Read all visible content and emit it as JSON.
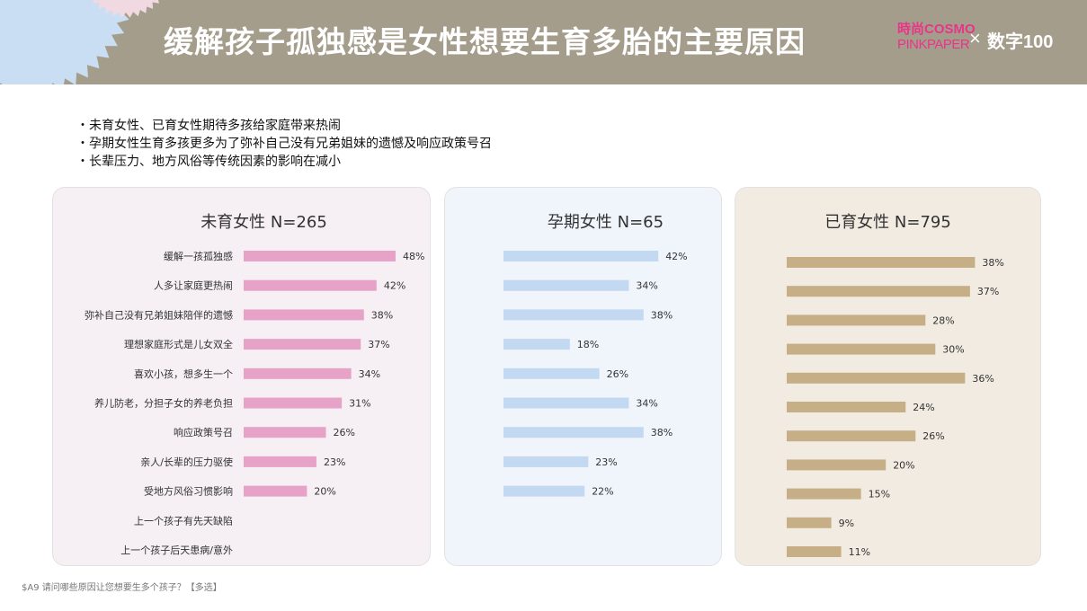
{
  "header": {
    "title": "缓解孩子孤独感是女性想要生育多胎的主要原因",
    "logo_line1": "時尚COSMO",
    "logo_line2": "PINKPAPER",
    "logo_sep": "×",
    "logo_partner": "数字100"
  },
  "bullets": [
    "・未育女性、已育女性期待多孩给家庭带来热闹",
    "・孕期女性生育多孩更多为了弥补自己没有兄弟姐妹的遗憾及响应政策号召",
    "・长辈压力、地方风俗等传统因素的影响在减小"
  ],
  "footnote": "$A9 请问哪些原因让您想要生多个孩子？【多选】",
  "colors": {
    "pink": "#e7a3c7",
    "blue": "#c3d8f1",
    "tan": "#c6ae86"
  },
  "chart_data": [
    {
      "type": "bar",
      "orientation": "horizontal",
      "title": "未育女性 N=265",
      "categories": [
        "缓解一孩孤独感",
        "人多让家庭更热闹",
        "弥补自己没有兄弟姐妹陪伴的遗憾",
        "理想家庭形式是儿女双全",
        "喜欢小孩，想多生一个",
        "养儿防老，分担子女的养老负担",
        "响应政策号召",
        "亲人/长辈的压力驱使",
        "受地方风俗习惯影响",
        "上一个孩子有先天缺陷",
        "上一个孩子后天患病/意外"
      ],
      "values": [
        48,
        42,
        38,
        37,
        34,
        31,
        26,
        23,
        20,
        null,
        null
      ],
      "unit": "%",
      "color": "#e7a3c7"
    },
    {
      "type": "bar",
      "orientation": "horizontal",
      "title": "孕期女性 N=65",
      "values": [
        42,
        34,
        38,
        18,
        26,
        34,
        38,
        23,
        22
      ],
      "unit": "%",
      "color": "#c3d8f1"
    },
    {
      "type": "bar",
      "orientation": "horizontal",
      "title": "已育女性 N=795",
      "values": [
        38,
        37,
        28,
        30,
        36,
        24,
        26,
        20,
        15,
        9,
        11
      ],
      "unit": "%",
      "color": "#c6ae86"
    }
  ]
}
